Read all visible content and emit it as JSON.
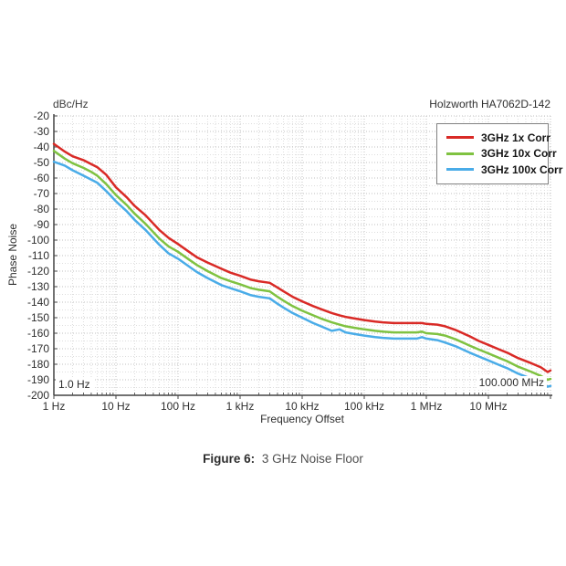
{
  "header": {
    "unit_label": "dBc/Hz",
    "title": "Holzworth HA7062D-142"
  },
  "caption": {
    "prefix": "Figure 6:",
    "text": "3 GHz Noise Floor"
  },
  "colors": {
    "series_red": "#d92a26",
    "series_green": "#7fc241",
    "series_blue": "#4aace8",
    "grid_minor": "#dedede",
    "grid_major": "#c2c2c2",
    "axis": "#444444"
  },
  "chart_data": {
    "type": "line",
    "title": "Holzworth HA7062D-142",
    "x_axis": {
      "label": "Frequency Offset",
      "scale": "log",
      "min": 1,
      "max": 100000000,
      "ticks": [
        {
          "v": 1,
          "label": "1 Hz"
        },
        {
          "v": 10,
          "label": "10 Hz"
        },
        {
          "v": 100,
          "label": "100 Hz"
        },
        {
          "v": 1000,
          "label": "1 kHz"
        },
        {
          "v": 10000,
          "label": "10 kHz"
        },
        {
          "v": 100000,
          "label": "100 kHz"
        },
        {
          "v": 1000000,
          "label": "1 MHz"
        },
        {
          "v": 10000000,
          "label": "10 MHz"
        }
      ]
    },
    "y_axis": {
      "label": "Phase Noise",
      "unit": "dBc/Hz",
      "min": -200,
      "max": -20,
      "tick_step": 10,
      "minor_step": 5,
      "ticks": [
        -20,
        -30,
        -40,
        -50,
        -60,
        -70,
        -80,
        -90,
        -100,
        -110,
        -120,
        -130,
        -140,
        -150,
        -160,
        -170,
        -180,
        -190,
        -200
      ]
    },
    "grid": true,
    "legend_position": "top-right",
    "annotations": [
      {
        "text": "1.0 Hz",
        "corner": "bottom-left"
      },
      {
        "text": "100.000 MHz",
        "corner": "bottom-right"
      }
    ],
    "x": [
      1,
      1.5,
      2,
      3,
      4,
      5,
      7,
      10,
      15,
      20,
      30,
      50,
      70,
      100,
      150,
      200,
      300,
      500,
      700,
      1000,
      1500,
      2000,
      3000,
      4000,
      5000,
      7000,
      10000,
      15000,
      20000,
      30000,
      40000,
      50000,
      70000,
      100000,
      150000,
      200000,
      300000,
      500000,
      700000,
      850000,
      1000000,
      1500000,
      2000000,
      3000000,
      5000000,
      7000000,
      10000000,
      15000000,
      20000000,
      30000000,
      50000000,
      70000000,
      90000000,
      100000000
    ],
    "series": [
      {
        "name": "3GHz 1x Corr",
        "color": "#d92a26",
        "values": [
          -38,
          -43,
          -46,
          -48.5,
          -51,
          -53,
          -58,
          -66,
          -72.5,
          -78,
          -84,
          -93.5,
          -98.5,
          -102.5,
          -107.5,
          -111,
          -114.5,
          -118.5,
          -121,
          -123,
          -125.5,
          -126.5,
          -127.5,
          -130.5,
          -133,
          -136.5,
          -139.5,
          -142.5,
          -144.5,
          -147,
          -148.5,
          -149.5,
          -150.5,
          -151.5,
          -152.5,
          -153,
          -153.5,
          -153.5,
          -153.5,
          -153.5,
          -154,
          -154.5,
          -155.5,
          -158,
          -162,
          -165,
          -167.5,
          -170.5,
          -172.5,
          -176,
          -179.5,
          -182,
          -185,
          -184
        ]
      },
      {
        "name": "3GHz 10x Corr",
        "color": "#7fc241",
        "values": [
          -42.5,
          -47.5,
          -50.5,
          -53.5,
          -56,
          -58.5,
          -64,
          -71,
          -77.5,
          -83,
          -89.5,
          -99,
          -104,
          -107.5,
          -112.5,
          -116,
          -120,
          -124.5,
          -126.5,
          -128.5,
          -131,
          -132,
          -133,
          -136.5,
          -139,
          -142.5,
          -145.5,
          -148.5,
          -150.5,
          -153,
          -154.5,
          -155.5,
          -156.5,
          -157.5,
          -158.5,
          -159,
          -159.5,
          -159.5,
          -159.5,
          -159,
          -160,
          -160.5,
          -161.5,
          -164,
          -168,
          -170.5,
          -173,
          -176,
          -178,
          -181.5,
          -185,
          -187.5,
          -190,
          -189.5
        ]
      },
      {
        "name": "3GHz 100x Corr",
        "color": "#4aace8",
        "values": [
          -49.5,
          -52,
          -55,
          -58.5,
          -61,
          -63,
          -68.5,
          -75,
          -81.5,
          -87,
          -93.5,
          -103,
          -108.5,
          -112,
          -117,
          -120.5,
          -124.5,
          -129,
          -131,
          -133,
          -135.5,
          -136.5,
          -137.5,
          -141,
          -143.5,
          -147,
          -150,
          -153.5,
          -155.5,
          -158.5,
          -157.5,
          -159.5,
          -160.5,
          -161.5,
          -162.5,
          -163,
          -163.5,
          -163.5,
          -163.5,
          -162.5,
          -163.5,
          -164.5,
          -166,
          -168.5,
          -172.5,
          -175,
          -177.5,
          -180.5,
          -182.5,
          -186,
          -189.5,
          -192,
          -194.5,
          -194
        ]
      }
    ]
  }
}
